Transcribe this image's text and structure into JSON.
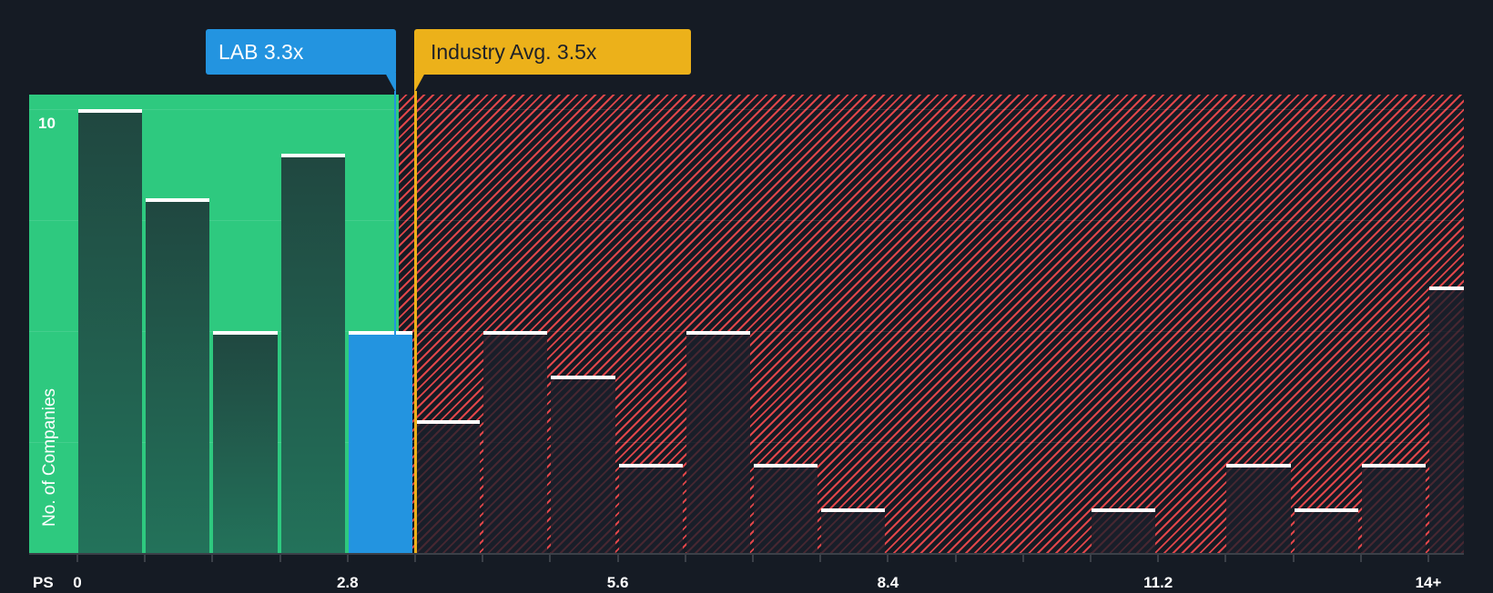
{
  "chart_data": {
    "type": "bar",
    "title": "",
    "xlabel": "PS",
    "ylabel": "No. of Companies",
    "ylim": [
      0,
      10.3
    ],
    "y_gridlines": [
      2.5,
      5,
      7.5,
      10
    ],
    "y_tick_labels": [
      "10"
    ],
    "x_tick_labels": [
      "0",
      "2.8",
      "5.6",
      "8.4",
      "11.2",
      "14+"
    ],
    "bin_width": 0.7,
    "categories": [
      "0-0.7",
      "0.7-1.4",
      "1.4-2.1",
      "2.1-2.8",
      "2.8-3.5",
      "3.5-4.2",
      "4.2-4.9",
      "4.9-5.6",
      "5.6-6.3",
      "6.3-7.0",
      "7.0-7.7",
      "7.7-8.4",
      "8.4-9.1",
      "9.1-9.8",
      "9.8-10.5",
      "10.5-11.2",
      "11.2-11.9",
      "11.9-12.6",
      "12.6-13.3",
      "13.3-14.0",
      "14+"
    ],
    "values": [
      10,
      8,
      5,
      9,
      5,
      3,
      5,
      4,
      2,
      5,
      2,
      1,
      0,
      0,
      0,
      1,
      0,
      2,
      1,
      2,
      6
    ],
    "subject_bin_index": 4,
    "markers": [
      {
        "name": "LAB",
        "label": "LAB 3.3x",
        "value": 3.3,
        "color": "#2394e0"
      },
      {
        "name": "Industry Avg.",
        "label": "Industry Avg. 3.5x",
        "value": 3.5,
        "color": "#ecb11a"
      }
    ],
    "zones": [
      {
        "name": "below-subject",
        "color": "#2ec97f",
        "from": 0,
        "to": 3.3
      },
      {
        "name": "above-subject",
        "color": "#e0464a",
        "pattern": "diagonal-hatch",
        "from": 3.3,
        "to": 14.7
      }
    ],
    "legend": "none",
    "grid": true
  },
  "labels": {
    "x_title": "PS",
    "y_title": "No. of Companies",
    "y_top": "10",
    "subject_callout": "LAB 3.3x",
    "industry_callout": "Industry Avg. 3.5x"
  },
  "colors": {
    "background": "#151b24",
    "green_zone": "#2ec97f",
    "red_hatch": "#e0464a",
    "subject": "#2394e0",
    "industry": "#ecb11a"
  }
}
